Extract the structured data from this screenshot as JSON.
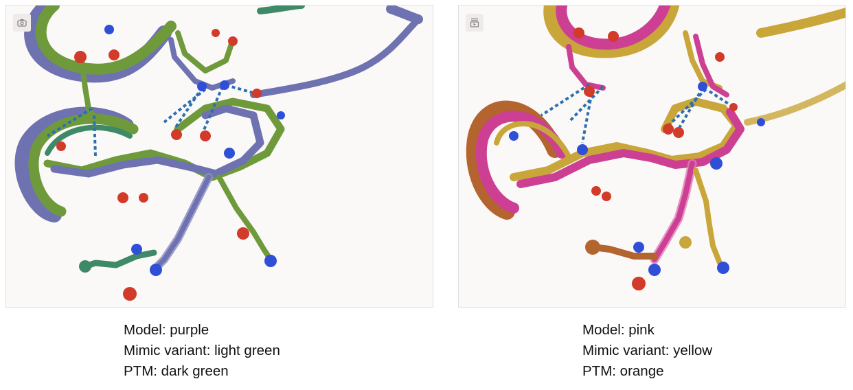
{
  "panels": [
    {
      "model_label": "Model: purple",
      "mimic_label": "Mimic variant: light green",
      "ptm_label": "PTM: dark green",
      "colors": {
        "model": "#6e72b0",
        "mimic": "#6f9a3c",
        "ptm": "#3f8a66"
      },
      "tool_icon": "camera-icon"
    },
    {
      "model_label": "Model: pink",
      "mimic_label": "Mimic variant: yellow",
      "ptm_label": "PTM: orange",
      "colors": {
        "model": "#cc3f93",
        "mimic": "#c9a63a",
        "ptm": "#b4642e"
      },
      "tool_icon": "screenshot-icon"
    }
  ],
  "atom_colors": {
    "oxygen": "#d23a2a",
    "nitrogen": "#2f4fd6",
    "hbond": "#2f6fae"
  }
}
